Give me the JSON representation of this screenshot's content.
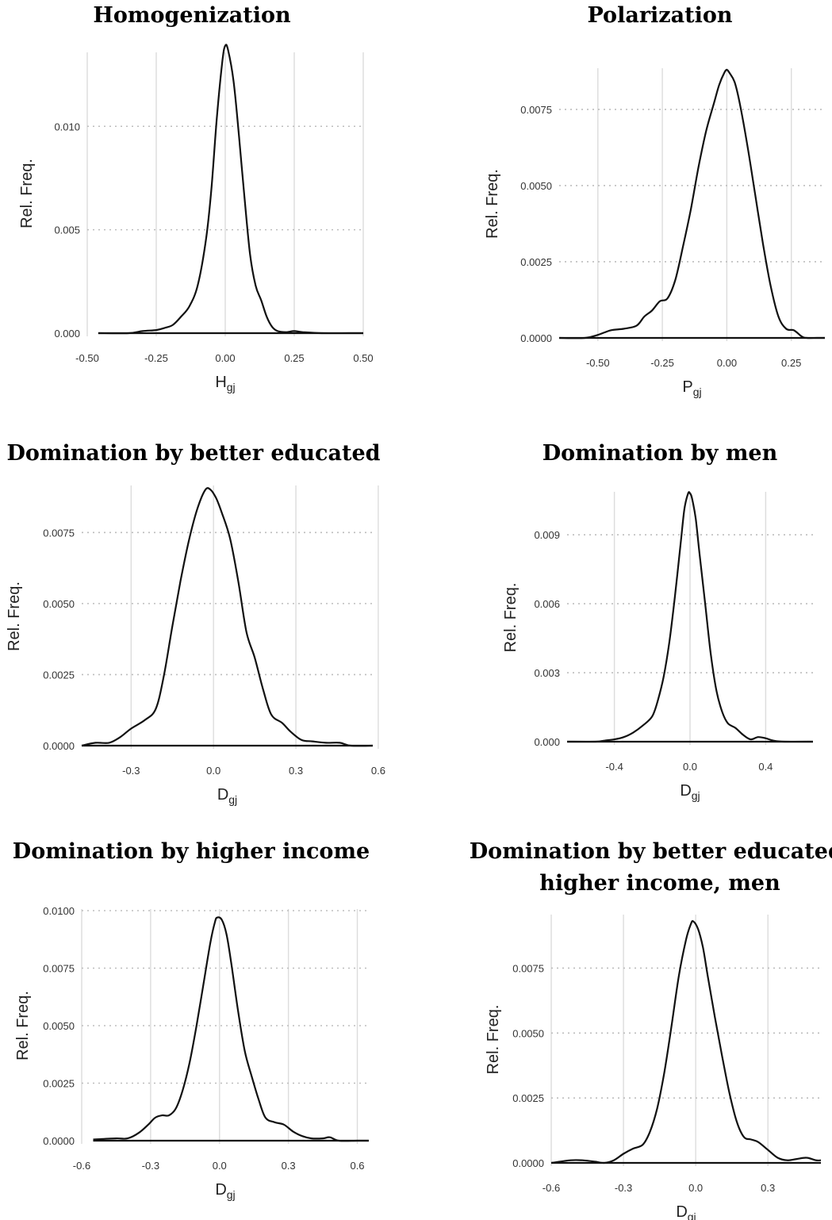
{
  "chart_data": [
    {
      "type": "line",
      "title": [
        "Homogenization"
      ],
      "xlabel": {
        "main": "H",
        "sub": "gj"
      },
      "ylabel": "Rel. Freq.",
      "xlim": [
        -0.5,
        0.5
      ],
      "ylim": [
        0,
        0.0135
      ],
      "xticks": [
        -0.5,
        -0.25,
        0,
        0.25,
        0.5
      ],
      "xtick_labels": [
        "-0.50",
        "-0.25",
        "0.00",
        "0.25",
        "0.50"
      ],
      "yticks": [
        0,
        0.005,
        0.01
      ],
      "ytick_labels": [
        "0.000",
        "0.005",
        "0.010"
      ],
      "grid": true,
      "x": [
        -0.46,
        -0.35,
        -0.3,
        -0.25,
        -0.22,
        -0.19,
        -0.16,
        -0.13,
        -0.1,
        -0.07,
        -0.05,
        -0.03,
        -0.01,
        0.0,
        0.01,
        0.03,
        0.05,
        0.07,
        0.09,
        0.11,
        0.13,
        0.15,
        0.17,
        0.19,
        0.22,
        0.25,
        0.28,
        0.35,
        0.45,
        0.5
      ],
      "y": [
        0.0,
        0.0,
        0.0001,
        0.00015,
        0.00025,
        0.0004,
        0.0008,
        0.0013,
        0.0023,
        0.0045,
        0.007,
        0.0105,
        0.0132,
        0.0139,
        0.0137,
        0.0122,
        0.0095,
        0.0065,
        0.0038,
        0.0023,
        0.0016,
        0.0008,
        0.0003,
        0.0001,
        5e-05,
        0.0001,
        5e-05,
        0.0,
        0.0,
        0.0
      ]
    },
    {
      "type": "line",
      "title": [
        "Polarization"
      ],
      "xlabel": {
        "main": "P",
        "sub": "gj"
      },
      "ylabel": "Rel. Freq.",
      "xlim": [
        -0.65,
        0.38
      ],
      "ylim": [
        0,
        0.0088
      ],
      "xticks": [
        -0.5,
        -0.25,
        0,
        0.25
      ],
      "xtick_labels": [
        "-0.50",
        "-0.25",
        "0.00",
        "0.25"
      ],
      "yticks": [
        0,
        0.0025,
        0.005,
        0.0075
      ],
      "ytick_labels": [
        "0.0000",
        "0.0025",
        "0.0050",
        "0.0075"
      ],
      "grid": true,
      "x": [
        -0.65,
        -0.55,
        -0.5,
        -0.45,
        -0.4,
        -0.35,
        -0.32,
        -0.29,
        -0.26,
        -0.23,
        -0.2,
        -0.17,
        -0.14,
        -0.11,
        -0.08,
        -0.05,
        -0.03,
        -0.01,
        0.0,
        0.01,
        0.03,
        0.05,
        0.08,
        0.11,
        0.14,
        0.17,
        0.2,
        0.23,
        0.26,
        0.29,
        0.31,
        0.35,
        0.38
      ],
      "y": [
        0.0,
        0.0,
        0.0001,
        0.00025,
        0.0003,
        0.0004,
        0.0007,
        0.0009,
        0.0012,
        0.0013,
        0.0019,
        0.003,
        0.0042,
        0.0056,
        0.0068,
        0.0077,
        0.0083,
        0.0087,
        0.0088,
        0.0087,
        0.0084,
        0.0077,
        0.0063,
        0.0047,
        0.0031,
        0.0017,
        0.0007,
        0.0003,
        0.00025,
        5e-05,
        0.0,
        0.0,
        0.0
      ]
    },
    {
      "type": "line",
      "title": [
        "Domination by better educated"
      ],
      "xlabel": {
        "main": "D",
        "sub": "gj"
      },
      "ylabel": "Rel. Freq.",
      "xlim": [
        -0.48,
        0.58
      ],
      "ylim": [
        0,
        0.0091
      ],
      "xticks": [
        -0.3,
        0,
        0.3,
        0.6
      ],
      "xtick_labels": [
        "-0.3",
        "0.0",
        "0.3",
        "0.6"
      ],
      "yticks": [
        0,
        0.0025,
        0.005,
        0.0075
      ],
      "ytick_labels": [
        "0.0000",
        "0.0025",
        "0.0050",
        "0.0075"
      ],
      "grid": true,
      "x": [
        -0.48,
        -0.43,
        -0.38,
        -0.34,
        -0.3,
        -0.25,
        -0.21,
        -0.18,
        -0.15,
        -0.12,
        -0.09,
        -0.06,
        -0.03,
        -0.01,
        0.01,
        0.03,
        0.06,
        0.09,
        0.12,
        0.15,
        0.18,
        0.21,
        0.25,
        0.28,
        0.32,
        0.36,
        0.41,
        0.46,
        0.5,
        0.58
      ],
      "y": [
        0.0,
        0.0001,
        0.0001,
        0.0003,
        0.0006,
        0.0009,
        0.0013,
        0.0025,
        0.0042,
        0.0058,
        0.0072,
        0.0083,
        0.009,
        0.009,
        0.0087,
        0.0082,
        0.0073,
        0.0058,
        0.004,
        0.0031,
        0.002,
        0.0011,
        0.0008,
        0.0005,
        0.0002,
        0.00015,
        0.0001,
        0.0001,
        0.0,
        0.0
      ]
    },
    {
      "type": "line",
      "title": [
        "Domination by men"
      ],
      "xlabel": {
        "main": "D",
        "sub": "gj"
      },
      "ylabel": "Rel. Freq.",
      "xlim": [
        -0.65,
        0.65
      ],
      "ylim": [
        0,
        0.0108
      ],
      "xticks": [
        -0.4,
        0,
        0.4
      ],
      "xtick_labels": [
        "-0.4",
        "0.0",
        "0.4"
      ],
      "yticks": [
        0,
        0.003,
        0.006,
        0.009
      ],
      "ytick_labels": [
        "0.000",
        "0.003",
        "0.006",
        "0.009"
      ],
      "grid": true,
      "x": [
        -0.65,
        -0.5,
        -0.45,
        -0.4,
        -0.35,
        -0.3,
        -0.25,
        -0.2,
        -0.17,
        -0.14,
        -0.11,
        -0.08,
        -0.05,
        -0.03,
        -0.01,
        0.0,
        0.01,
        0.03,
        0.05,
        0.08,
        0.11,
        0.14,
        0.17,
        0.2,
        0.24,
        0.28,
        0.32,
        0.36,
        0.4,
        0.44,
        0.5,
        0.65
      ],
      "y": [
        0.0,
        0.0,
        5e-05,
        0.0001,
        0.0002,
        0.0004,
        0.0007,
        0.0011,
        0.0018,
        0.0028,
        0.0043,
        0.0063,
        0.0086,
        0.0101,
        0.0108,
        0.0108,
        0.0106,
        0.0097,
        0.0082,
        0.006,
        0.0038,
        0.0022,
        0.0013,
        0.0008,
        0.0006,
        0.0003,
        0.0001,
        0.0002,
        0.00015,
        5e-05,
        0.0,
        0.0
      ]
    },
    {
      "type": "line",
      "title": [
        "Domination by higher income"
      ],
      "xlabel": {
        "main": "D",
        "sub": "gj"
      },
      "ylabel": "Rel. Freq.",
      "xlim": [
        -0.6,
        0.65
      ],
      "ylim": [
        0,
        0.01
      ],
      "xticks": [
        -0.6,
        -0.3,
        0,
        0.3,
        0.6
      ],
      "xtick_labels": [
        "-0.6",
        "-0.3",
        "0.0",
        "0.3",
        "0.6"
      ],
      "yticks": [
        0,
        0.0025,
        0.005,
        0.0075,
        0.01
      ],
      "ytick_labels": [
        "0.0000",
        "0.0025",
        "0.0050",
        "0.0075",
        "0.0100"
      ],
      "grid": true,
      "x": [
        -0.55,
        -0.45,
        -0.4,
        -0.35,
        -0.31,
        -0.28,
        -0.25,
        -0.22,
        -0.19,
        -0.16,
        -0.13,
        -0.1,
        -0.07,
        -0.04,
        -0.02,
        -0.01,
        0.01,
        0.03,
        0.05,
        0.08,
        0.11,
        0.14,
        0.17,
        0.2,
        0.24,
        0.28,
        0.32,
        0.36,
        0.4,
        0.45,
        0.48,
        0.52,
        0.6,
        0.65
      ],
      "y": [
        5e-05,
        0.0001,
        0.0001,
        0.00035,
        0.0007,
        0.001,
        0.0011,
        0.0011,
        0.0014,
        0.0022,
        0.0034,
        0.005,
        0.0068,
        0.0086,
        0.0095,
        0.0097,
        0.0096,
        0.009,
        0.0078,
        0.0057,
        0.0039,
        0.0028,
        0.0018,
        0.001,
        0.0008,
        0.0007,
        0.0004,
        0.0002,
        0.0001,
        0.0001,
        0.00015,
        0.0,
        0.0,
        0.0
      ]
    },
    {
      "type": "line",
      "title": [
        "Domination by better educated,",
        "higher income, men"
      ],
      "xlabel": {
        "main": "D",
        "sub": "gj"
      },
      "ylabel": "Rel. Freq.",
      "xlim": [
        -0.6,
        0.52
      ],
      "ylim": [
        0,
        0.0095
      ],
      "xticks": [
        -0.6,
        -0.3,
        0,
        0.3
      ],
      "xtick_labels": [
        "-0.6",
        "-0.3",
        "0.0",
        "0.3"
      ],
      "yticks": [
        0,
        0.0025,
        0.005,
        0.0075
      ],
      "ytick_labels": [
        "0.0000",
        "0.0025",
        "0.0050",
        "0.0075"
      ],
      "grid": true,
      "x": [
        -0.6,
        -0.52,
        -0.47,
        -0.42,
        -0.38,
        -0.34,
        -0.3,
        -0.26,
        -0.22,
        -0.19,
        -0.16,
        -0.13,
        -0.1,
        -0.07,
        -0.04,
        -0.02,
        -0.01,
        0.01,
        0.03,
        0.05,
        0.08,
        0.11,
        0.14,
        0.17,
        0.2,
        0.23,
        0.26,
        0.3,
        0.34,
        0.38,
        0.42,
        0.46,
        0.5,
        0.52
      ],
      "y": [
        0.0,
        0.0001,
        0.0001,
        5e-05,
        0.0,
        0.0001,
        0.00035,
        0.00055,
        0.0007,
        0.0012,
        0.0021,
        0.0035,
        0.0053,
        0.0072,
        0.0086,
        0.0092,
        0.0093,
        0.009,
        0.0083,
        0.0072,
        0.0056,
        0.0041,
        0.0027,
        0.0016,
        0.001,
        0.0009,
        0.0008,
        0.0005,
        0.0002,
        0.0001,
        0.00015,
        0.0002,
        0.0001,
        0.0001
      ]
    }
  ]
}
